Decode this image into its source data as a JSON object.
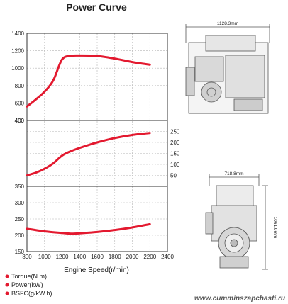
{
  "chart_data": {
    "type": "line",
    "title": "Power Curve",
    "xlabel": "Engine Speed(r/min)",
    "x_ticks": [
      800,
      1000,
      1200,
      1400,
      1600,
      1800,
      2000,
      2200,
      2400
    ],
    "xlim": [
      800,
      2400
    ],
    "panels": [
      {
        "name": "torque",
        "ylim": [
          400,
          1400
        ],
        "left_ticks": [
          400,
          600,
          800,
          1000,
          1200,
          1400
        ],
        "right_ticks": []
      },
      {
        "name": "power",
        "ylim": [
          0,
          300
        ],
        "left_ticks": [
          400
        ],
        "right_ticks": [
          50,
          100,
          150,
          200,
          250
        ]
      },
      {
        "name": "bsfc",
        "ylim": [
          150,
          350
        ],
        "left_ticks": [
          150,
          200,
          250,
          300,
          350
        ],
        "right_ticks": []
      }
    ],
    "series": [
      {
        "name": "Torque(N.m)",
        "panel": "torque",
        "color": "#e3192f",
        "x": [
          800,
          900,
          1000,
          1100,
          1200,
          1300,
          1400,
          1600,
          1800,
          2000,
          2200
        ],
        "y": [
          560,
          640,
          730,
          860,
          1100,
          1140,
          1145,
          1140,
          1110,
          1070,
          1040
        ]
      },
      {
        "name": "Power(kW)",
        "panel": "power",
        "color": "#e3192f",
        "x": [
          800,
          900,
          1000,
          1100,
          1200,
          1300,
          1400,
          1600,
          1800,
          2000,
          2200
        ],
        "y": [
          50,
          62,
          80,
          105,
          140,
          160,
          175,
          200,
          220,
          234,
          243
        ]
      },
      {
        "name": "BSFC(g/kW.h)",
        "panel": "bsfc",
        "color": "#e3192f",
        "x": [
          800,
          1000,
          1200,
          1300,
          1400,
          1600,
          1800,
          2000,
          2200
        ],
        "y": [
          220,
          212,
          207,
          205,
          206,
          210,
          216,
          224,
          234
        ]
      }
    ],
    "grid": true,
    "legend_position": "bottom-left"
  },
  "drawings": {
    "side_width_label": "1128.3mm",
    "front_width_label": "718.8mm",
    "front_height_label": "1061.9mm"
  },
  "watermark": "www.cumminszapchasti.ru",
  "colors": {
    "curve": "#e3192f",
    "grid": "#b5b5b5",
    "axis": "#333333",
    "drawing": "#555555"
  }
}
